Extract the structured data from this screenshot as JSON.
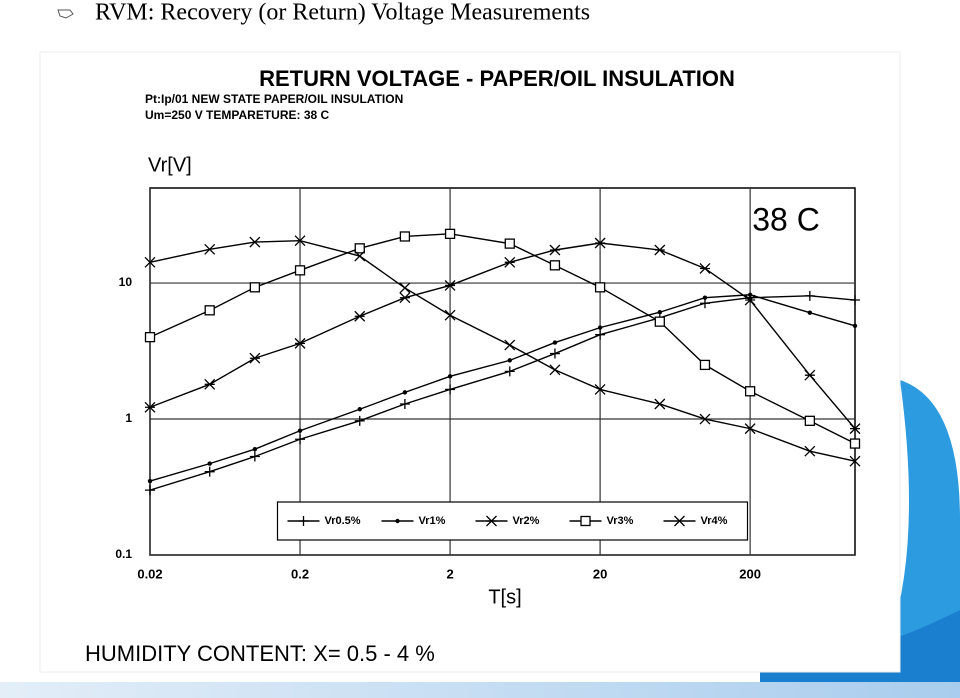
{
  "slide_title": "RVM: Recovery (or Return) Voltage Measurements",
  "chart_data": {
    "type": "line",
    "title": "RETURN VOLTAGE - PAPER/OIL INSULATION",
    "subtitle": [
      "Pt:Ip/01 NEW STATE PAPER/OIL INSULATION",
      "Um=250 V TEMPARETURE: 38 C"
    ],
    "annotation": "38 C",
    "y_label": "Vr[V]",
    "x_label": "T[s]",
    "footnote": "HUMIDITY CONTENT: X= 0.5 - 4 %",
    "xscale": "log",
    "yscale": "log",
    "xlim": [
      0.02,
      1000
    ],
    "xticks": [
      0.02,
      0.2,
      2,
      20,
      200
    ],
    "ylim": [
      0.1,
      50
    ],
    "yticks": [
      0.1,
      1,
      10
    ],
    "grid": true,
    "legend": "bottom",
    "x": [
      0.02,
      0.05,
      0.1,
      0.2,
      0.5,
      1,
      2,
      5,
      10,
      20,
      50,
      100,
      200,
      500,
      1000
    ],
    "series": [
      {
        "name": "Vr0.5%",
        "color": "#000000",
        "marker": "plus",
        "values": [
          0.3,
          0.41,
          0.53,
          0.71,
          0.97,
          1.29,
          1.65,
          2.24,
          3.03,
          4.17,
          5.55,
          7.1,
          7.8,
          8.05,
          7.5
        ]
      },
      {
        "name": "Vr1%",
        "color": "#000000",
        "marker": "dot",
        "values": [
          0.35,
          0.47,
          0.6,
          0.82,
          1.18,
          1.57,
          2.06,
          2.7,
          3.65,
          4.7,
          6.1,
          7.8,
          8.2,
          6.05,
          4.85
        ]
      },
      {
        "name": "Vr2%",
        "color": "#000000",
        "marker": "asterisk",
        "values": [
          1.22,
          1.8,
          2.8,
          3.6,
          5.7,
          7.8,
          9.6,
          14.2,
          17.5,
          19.7,
          17.5,
          12.8,
          7.5,
          2.1,
          0.85
        ]
      },
      {
        "name": "Vr3%",
        "color": "#000000",
        "marker": "square",
        "values": [
          4.0,
          6.3,
          9.3,
          12.4,
          18,
          22,
          23,
          19.5,
          13.5,
          9.3,
          5.2,
          2.5,
          1.6,
          0.97,
          0.66
        ]
      },
      {
        "name": "Vr4%",
        "color": "#000000",
        "marker": "x",
        "values": [
          14.2,
          17.7,
          20,
          20.5,
          15.8,
          9.2,
          5.8,
          3.5,
          2.3,
          1.65,
          1.29,
          1.0,
          0.85,
          0.58,
          0.49
        ]
      }
    ]
  }
}
